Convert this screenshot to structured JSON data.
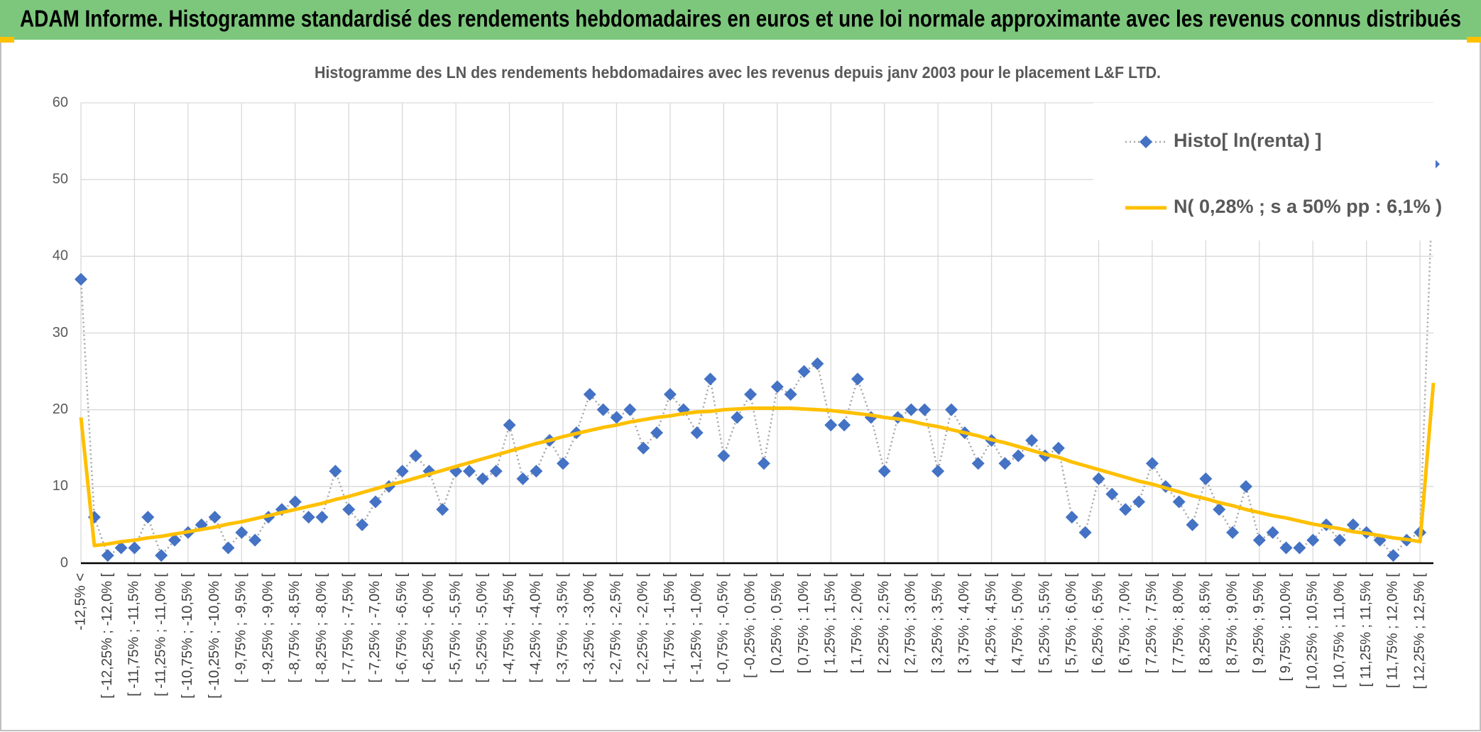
{
  "header": {
    "title": "ADAM Informe. Histogramme standardisé des rendements hebdomadaires en euros et une loi normale approximante avec les revenus connus distribués"
  },
  "chart_data": {
    "type": "line",
    "title": "Histogramme des LN des rendements hebdomadaires avec les revenus depuis janv 2003 pour le placement L&F LTD.",
    "categories": [
      "-12,5% <",
      null,
      "[ -12,25% ; -12,0% [",
      null,
      "[ -11,75% ; -11,5% [",
      null,
      "[ -11,25% ; -11,0% [",
      null,
      "[ -10,75% ; -10,5% [",
      null,
      "[ -10,25% ; -10,0% [",
      null,
      "[ -9,75% ; -9,5% [",
      null,
      "[ -9,25% ; -9,0% [",
      null,
      "[ -8,75% ; -8,5% [",
      null,
      "[ -8,25% ; -8,0% [",
      null,
      "[ -7,75% ; -7,5% [",
      null,
      "[ -7,25% ; -7,0% [",
      null,
      "[ -6,75% ; -6,5% [",
      null,
      "[ -6,25% ; -6,0% [",
      null,
      "[ -5,75% ; -5,5% [",
      null,
      "[ -5,25% ; -5,0% [",
      null,
      "[ -4,75% ; -4,5% [",
      null,
      "[ -4,25% ; -4,0% [",
      null,
      "[ -3,75% ; -3,5% [",
      null,
      "[ -3,25% ; -3,0% [",
      null,
      "[ -2,75% ; -2,5% [",
      null,
      "[ -2,25% ; -2,0% [",
      null,
      "[ -1,75% ; -1,5% [",
      null,
      "[ -1,25% ; -1,0% [",
      null,
      "[ -0,75% ; -0,5% [",
      null,
      "[ -0,25% ; 0,0% [",
      null,
      "[ 0,25% ; 0,5% [",
      null,
      "[ 0,75% ; 1,0% [",
      null,
      "[ 1,25% ; 1,5% [",
      null,
      "[ 1,75% ; 2,0% [",
      null,
      "[ 2,25% ; 2,5% [",
      null,
      "[ 2,75% ; 3,0% [",
      null,
      "[ 3,25% ; 3,5% [",
      null,
      "[ 3,75% ; 4,0% [",
      null,
      "[ 4,25% ; 4,5% [",
      null,
      "[ 4,75% ; 5,0% [",
      null,
      "[ 5,25% ; 5,5% [",
      null,
      "[ 5,75% ; 6,0% [",
      null,
      "[ 6,25% ; 6,5% [",
      null,
      "[ 6,75% ; 7,0% [",
      null,
      "[ 7,25% ; 7,5% [",
      null,
      "[ 7,75% ; 8,0% [",
      null,
      "[ 8,25% ; 8,5% [",
      null,
      "[ 8,75% ; 9,0% [",
      null,
      "[ 9,25% ; 9,5% [",
      null,
      "[ 9,75% ; 10,0% [",
      null,
      "[ 10,25% ; 10,5% [",
      null,
      "[ 10,75% ; 11,0% [",
      null,
      "[ 11,25% ; 11,5% [",
      null,
      "[ 11,75% ; 12,0% [",
      null,
      "[ 12,25% ; 12,5% [",
      null
    ],
    "series": [
      {
        "name": "Histo[ ln(renta) ]",
        "color": "#4472c4",
        "line_color": "#a5a5a5",
        "line_style": "dotted",
        "marker": "diamond",
        "values": [
          37,
          6,
          1,
          2,
          2,
          6,
          1,
          3,
          4,
          5,
          6,
          2,
          4,
          3,
          6,
          7,
          8,
          6,
          6,
          12,
          7,
          5,
          8,
          10,
          12,
          14,
          12,
          7,
          12,
          12,
          11,
          12,
          18,
          11,
          12,
          16,
          13,
          17,
          22,
          20,
          19,
          20,
          15,
          17,
          22,
          20,
          17,
          24,
          14,
          19,
          22,
          13,
          23,
          22,
          25,
          26,
          18,
          18,
          24,
          19,
          12,
          19,
          20,
          20,
          12,
          20,
          17,
          13,
          16,
          13,
          14,
          16,
          14,
          15,
          6,
          4,
          11,
          9,
          7,
          8,
          13,
          10,
          8,
          5,
          11,
          7,
          4,
          10,
          3,
          4,
          2,
          2,
          3,
          5,
          3,
          5,
          4,
          3,
          1,
          3,
          4,
          52
        ]
      },
      {
        "name": "N( 0,28% ; s a 50% pp : 6,1% )",
        "color": "#ffc000",
        "line_style": "solid",
        "marker": "none",
        "values": [
          19,
          2.3,
          2.5,
          2.8,
          3.0,
          3.3,
          3.5,
          3.8,
          4.1,
          4.4,
          4.7,
          5.1,
          5.4,
          5.8,
          6.2,
          6.6,
          7.0,
          7.4,
          7.8,
          8.3,
          8.7,
          9.2,
          9.7,
          10.2,
          10.6,
          11.1,
          11.6,
          12.1,
          12.6,
          13.1,
          13.6,
          14.1,
          14.6,
          15.1,
          15.6,
          16.0,
          16.5,
          16.9,
          17.3,
          17.7,
          18.0,
          18.4,
          18.7,
          19.0,
          19.2,
          19.5,
          19.7,
          19.8,
          20.0,
          20.1,
          20.2,
          20.2,
          20.2,
          20.2,
          20.1,
          20.0,
          19.9,
          19.7,
          19.5,
          19.3,
          19.0,
          18.8,
          18.5,
          18.1,
          17.8,
          17.4,
          17.0,
          16.6,
          16.1,
          15.7,
          15.2,
          14.7,
          14.2,
          13.8,
          13.2,
          12.7,
          12.2,
          11.7,
          11.2,
          10.7,
          10.3,
          9.8,
          9.3,
          8.8,
          8.4,
          7.9,
          7.5,
          7.0,
          6.6,
          6.2,
          5.9,
          5.5,
          5.1,
          4.8,
          4.5,
          4.1,
          3.9,
          3.6,
          3.3,
          3.1,
          2.8,
          23.5
        ]
      }
    ],
    "ylim": [
      0,
      60
    ],
    "yticks": [
      0,
      10,
      20,
      30,
      40,
      50,
      60
    ],
    "grid": true,
    "legend": "top right"
  }
}
